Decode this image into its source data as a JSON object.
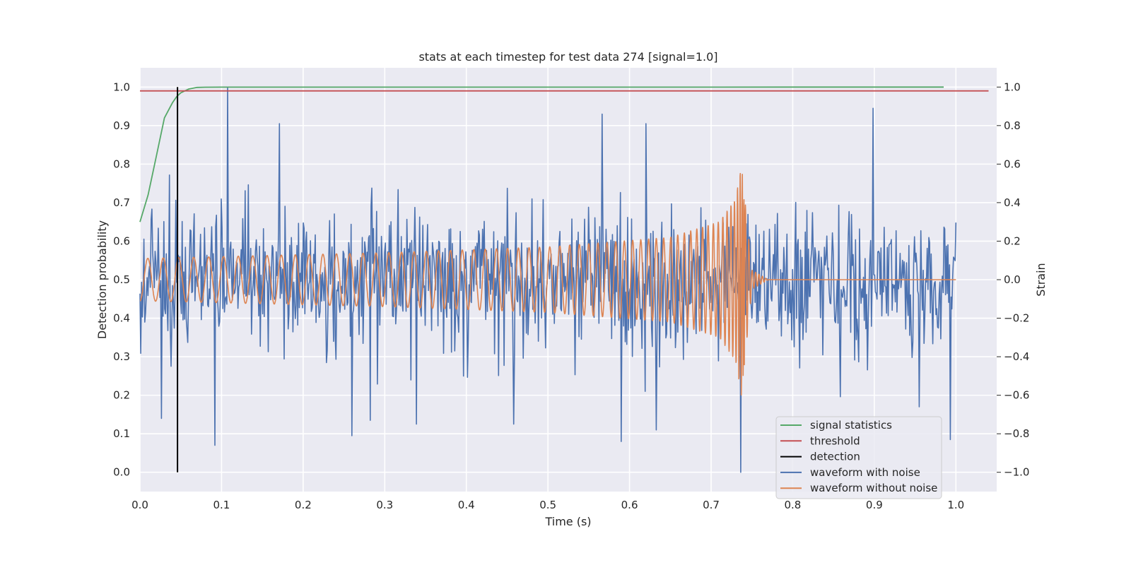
{
  "chart_data": {
    "type": "line",
    "title": "stats at each timestep for test data 274 [signal=1.0]",
    "xlabel": "Time (s)",
    "ylabel_left": "Detection probability",
    "ylabel_right": "Strain",
    "xlim": [
      0.0,
      1.05
    ],
    "ylim_left": [
      -0.05,
      1.05
    ],
    "ylim_right": [
      -1.1,
      1.1
    ],
    "xticks": [
      "0.0",
      "0.1",
      "0.2",
      "0.3",
      "0.4",
      "0.5",
      "0.6",
      "0.7",
      "0.8",
      "0.9",
      "1.0"
    ],
    "yticks_left": [
      "0.0",
      "0.1",
      "0.2",
      "0.3",
      "0.4",
      "0.5",
      "0.6",
      "0.7",
      "0.8",
      "0.9",
      "1.0"
    ],
    "yticks_right": [
      "−1.0",
      "−0.8",
      "−0.6",
      "−0.4",
      "−0.2",
      "0.0",
      "0.2",
      "0.4",
      "0.6",
      "0.8",
      "1.0"
    ],
    "grid": true,
    "legend_position": "lower-right",
    "colors": {
      "background": "#eaeaf2",
      "grid": "#ffffff",
      "signal_statistics": "#55a868",
      "threshold": "#c44e52",
      "detection": "#000000",
      "waveform_with_noise": "#4c72b0",
      "waveform_without_noise": "#dd8452"
    },
    "legend": [
      {
        "key": "signal_statistics",
        "label": "signal statistics"
      },
      {
        "key": "threshold",
        "label": "threshold"
      },
      {
        "key": "detection",
        "label": "detection"
      },
      {
        "key": "waveform_with_noise",
        "label": "waveform with noise"
      },
      {
        "key": "waveform_without_noise",
        "label": "waveform without noise"
      }
    ],
    "signal_statistics": {
      "axis": "left",
      "x": [
        0.0,
        0.01,
        0.02,
        0.03,
        0.04,
        0.045,
        0.05,
        0.055,
        0.06,
        0.065,
        0.07,
        0.08,
        0.1,
        0.2,
        0.4,
        0.6,
        0.8,
        0.985
      ],
      "y": [
        0.65,
        0.72,
        0.82,
        0.92,
        0.96,
        0.975,
        0.985,
        0.99,
        0.995,
        0.997,
        0.999,
        0.9995,
        0.9997,
        0.9998,
        0.9998,
        0.9998,
        0.9999,
        0.9999
      ]
    },
    "threshold": {
      "axis": "left",
      "x": [
        0.0,
        1.04
      ],
      "y": [
        0.99,
        0.99
      ]
    },
    "detection": {
      "axis": "left",
      "x": [
        0.046,
        0.046
      ],
      "y": [
        0.0,
        1.0
      ]
    },
    "waveform_with_noise": {
      "axis": "right",
      "note": "dense noise series, peaks read from figure",
      "x_range": [
        0.0,
        1.0
      ],
      "samples": 1024,
      "peaks": [
        {
          "x": 0.107,
          "y": 1.0
        },
        {
          "x": 0.092,
          "y": -0.86
        },
        {
          "x": 0.736,
          "y": -1.0
        },
        {
          "x": 0.898,
          "y": 0.89
        },
        {
          "x": 0.171,
          "y": 0.81
        },
        {
          "x": 0.566,
          "y": 0.86
        },
        {
          "x": 0.62,
          "y": 0.81
        },
        {
          "x": 0.59,
          "y": -0.84
        },
        {
          "x": 0.026,
          "y": -0.72
        },
        {
          "x": 0.26,
          "y": -0.81
        },
        {
          "x": 0.282,
          "y": -0.73
        },
        {
          "x": 0.339,
          "y": -0.75
        },
        {
          "x": 0.458,
          "y": -0.75
        },
        {
          "x": 0.633,
          "y": -0.78
        },
        {
          "x": 0.955,
          "y": -0.66
        },
        {
          "x": 0.993,
          "y": -0.83
        }
      ]
    },
    "waveform_without_noise": {
      "axis": "right",
      "note": "chirp: amplitude grows to merger near 0.737 s then ringdown to 0",
      "x_range": [
        0.0,
        1.0
      ],
      "amplitude": [
        {
          "x": 0.0,
          "y": 0.11
        },
        {
          "x": 0.3,
          "y": 0.14
        },
        {
          "x": 0.5,
          "y": 0.17
        },
        {
          "x": 0.65,
          "y": 0.22
        },
        {
          "x": 0.71,
          "y": 0.3
        },
        {
          "x": 0.73,
          "y": 0.42
        },
        {
          "x": 0.737,
          "y": 0.6
        },
        {
          "x": 0.75,
          "y": 0.05
        },
        {
          "x": 0.77,
          "y": 0.0
        }
      ],
      "merger_time": 0.737
    }
  }
}
